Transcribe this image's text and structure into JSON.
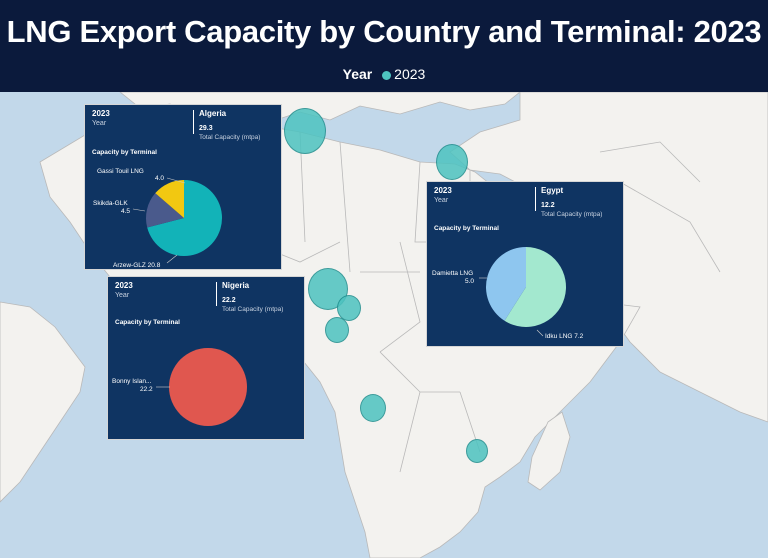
{
  "header": {
    "title": "LNG Export Capacity by Country and Terminal: 2023",
    "legend_label": "Year",
    "legend_item": "2023",
    "colors": {
      "background": "#0b1a3c",
      "bubble": "#4dc3c0"
    }
  },
  "map": {
    "region": "Africa and Mediterranean",
    "bubbles": [
      "Algeria terminal",
      "Egypt terminal",
      "Nigeria terminal",
      "Equatorial Guinea terminal",
      "Cameroon terminal",
      "Angola terminal",
      "Mozambique terminal"
    ]
  },
  "cards": {
    "algeria": {
      "year": "2023",
      "year_label": "Year",
      "country": "Algeria",
      "capacity": "29.3",
      "capacity_label": "Total Capacity (mtpa)",
      "section": "Capacity by Terminal",
      "terminals": [
        {
          "name": "Arzew-GLZ",
          "value": 20.8,
          "label": "Arzew-GLZ 20.8",
          "color": "#12b3b8"
        },
        {
          "name": "Skikda-GLK",
          "value": 4.5,
          "label": "Skikda-GLK",
          "value_label": "4.5",
          "color": "#4a5a8c"
        },
        {
          "name": "Gassi Touil LNG",
          "value": 4.0,
          "label": "Gassi Touil LNG",
          "value_label": "4.0",
          "color": "#f2c811"
        }
      ]
    },
    "egypt": {
      "year": "2023",
      "year_label": "Year",
      "country": "Egypt",
      "capacity": "12.2",
      "capacity_label": "Total Capacity (mtpa)",
      "section": "Capacity by Terminal",
      "terminals": [
        {
          "name": "Idku LNG",
          "value": 7.2,
          "label": "Idku LNG 7.2",
          "color": "#a3e8cf"
        },
        {
          "name": "Damietta LNG",
          "value": 5.0,
          "label": "Damietta LNG",
          "value_label": "5.0",
          "color": "#8ec6ef"
        }
      ]
    },
    "nigeria": {
      "year": "2023",
      "year_label": "Year",
      "country": "Nigeria",
      "capacity": "22.2",
      "capacity_label": "Total Capacity (mtpa)",
      "section": "Capacity by Terminal",
      "terminals": [
        {
          "name": "Bonny Islan...",
          "value": 22.2,
          "label": "Bonny Islan...",
          "value_label": "22.2",
          "color": "#e0574f"
        }
      ]
    }
  }
}
